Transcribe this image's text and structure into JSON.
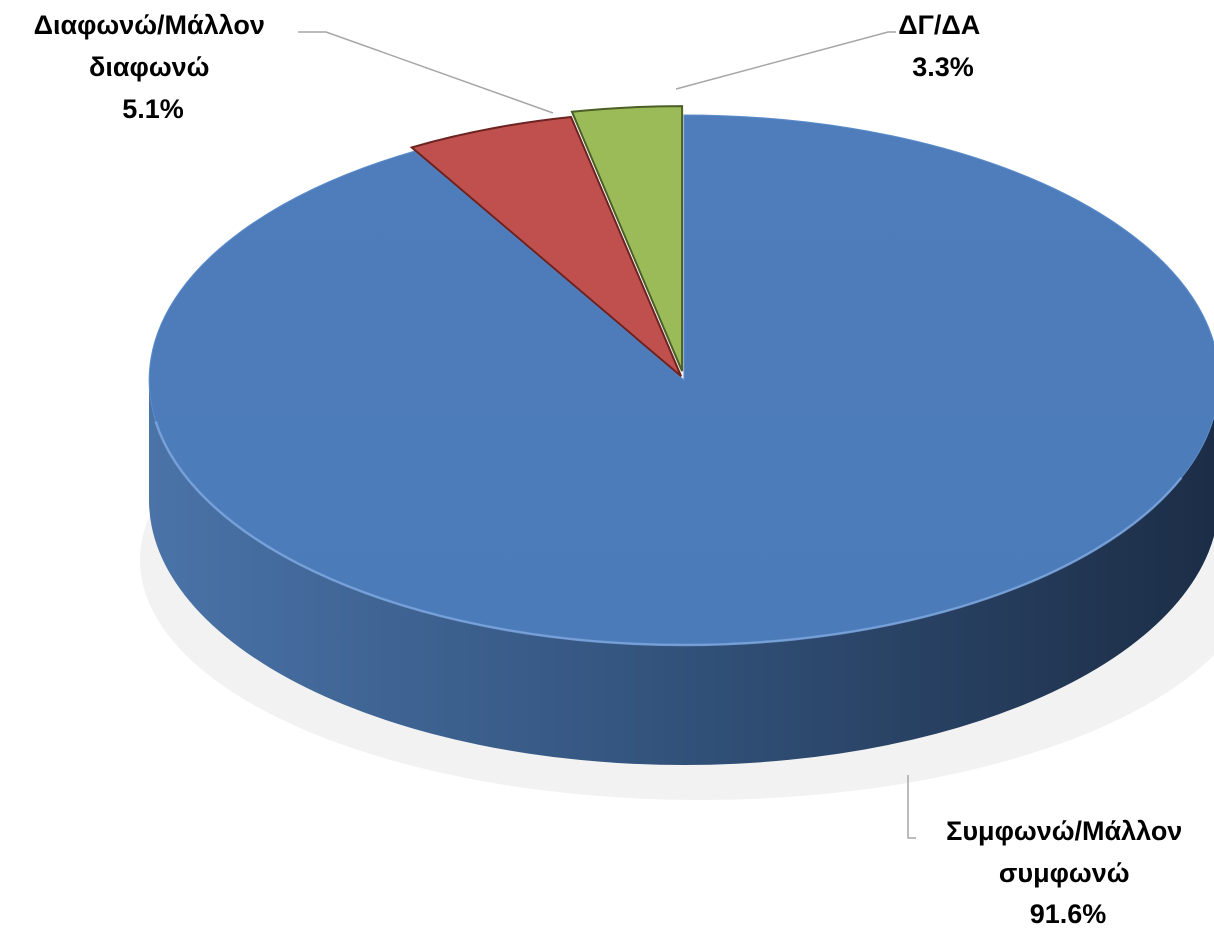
{
  "chart_data": {
    "type": "pie",
    "title": "",
    "three_d": true,
    "legend": "none",
    "slices": [
      {
        "label_lines": [
          "Συμφωνώ/Μάλλον",
          "συμφωνώ"
        ],
        "value": 91.6,
        "value_label": "91.6%",
        "color": "#4F81BD",
        "exploded": false
      },
      {
        "label_lines": [
          "Διαφωνώ/Μάλλον",
          "διαφωνώ"
        ],
        "value": 5.1,
        "value_label": "5.1%",
        "color": "#C0504D",
        "exploded": true
      },
      {
        "label_lines": [
          "ΔΓ/ΔΑ"
        ],
        "value": 3.3,
        "value_label": "3.3%",
        "color": "#9BBB59",
        "exploded": true
      }
    ]
  }
}
